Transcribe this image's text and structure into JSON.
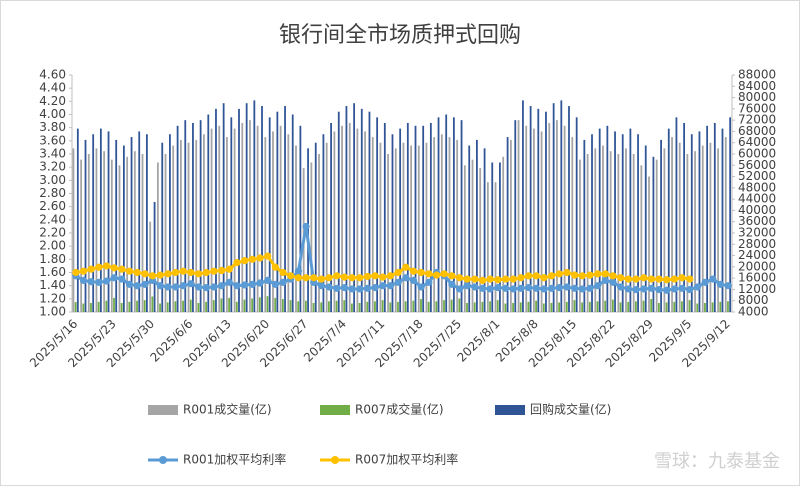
{
  "chart_data": {
    "type": "bar_line",
    "title": "银行间全市场质押式回购",
    "watermark": "雪球：九泰基金",
    "categories": [
      "2025/5/16",
      null,
      null,
      null,
      null,
      "2025/5/23",
      null,
      null,
      null,
      null,
      "2025/5/30",
      null,
      null,
      null,
      null,
      "2025/6/6",
      null,
      null,
      null,
      null,
      "2025/6/13",
      null,
      null,
      null,
      null,
      "2025/6/20",
      null,
      null,
      null,
      null,
      "2025/6/27",
      null,
      null,
      null,
      null,
      "2025/7/4",
      null,
      null,
      null,
      null,
      "2025/7/11",
      null,
      null,
      null,
      null,
      "2025/7/18",
      null,
      null,
      null,
      null,
      "2025/7/25",
      null,
      null,
      null,
      null,
      "2025/8/1",
      null,
      null,
      null,
      null,
      "2025/8/8",
      null,
      null,
      null,
      null,
      "2025/8/15",
      null,
      null,
      null,
      null,
      "2025/8/22",
      null,
      null,
      null,
      null,
      "2025/8/29",
      null,
      null,
      null,
      null,
      "2025/9/5",
      null,
      null,
      null,
      null,
      "2025/9/12"
    ],
    "ylim": [
      1.0,
      4.6
    ],
    "yticks": [
      {
        "value": 1.0,
        "label": "1.00"
      },
      {
        "value": 1.2,
        "label": "1.20"
      },
      {
        "value": 1.4,
        "label": "1.40"
      },
      {
        "value": 1.6,
        "label": "1.60"
      },
      {
        "value": 1.8,
        "label": "1.80"
      },
      {
        "value": 2.0,
        "label": "2.00"
      },
      {
        "value": 2.2,
        "label": "2.20"
      },
      {
        "value": 2.4,
        "label": "2.40"
      },
      {
        "value": 2.6,
        "label": "2.60"
      },
      {
        "value": 2.8,
        "label": "2.80"
      },
      {
        "value": 3.0,
        "label": "3.00"
      },
      {
        "value": 3.2,
        "label": "3.20"
      },
      {
        "value": 3.4,
        "label": "3.40"
      },
      {
        "value": 3.6,
        "label": "3.60"
      },
      {
        "value": 3.8,
        "label": "3.80"
      },
      {
        "value": 4.0,
        "label": "4.00"
      },
      {
        "value": 4.2,
        "label": "4.20"
      },
      {
        "value": 4.4,
        "label": "4.40"
      },
      {
        "value": 4.6,
        "label": "4.60"
      }
    ],
    "y2lim": [
      4000,
      88000
    ],
    "y2ticks": [
      4000,
      8000,
      12000,
      16000,
      20000,
      24000,
      28000,
      32000,
      36000,
      40000,
      44000,
      48000,
      52000,
      56000,
      60000,
      64000,
      68000,
      72000,
      76000,
      80000,
      84000,
      88000
    ],
    "series": [
      {
        "name": "R001成交量(亿)",
        "type": "bar",
        "axis": "y2",
        "color": "#a5a5a5",
        "values": [
          62000,
          58000,
          60000,
          62000,
          61000,
          58000,
          56000,
          59000,
          61000,
          60000,
          36000,
          57000,
          60000,
          63000,
          65000,
          64000,
          65000,
          67000,
          69000,
          70000,
          66000,
          69000,
          71000,
          72000,
          70000,
          66000,
          68000,
          70000,
          67000,
          63000,
          55000,
          57000,
          60000,
          64000,
          68000,
          70000,
          71000,
          69000,
          68000,
          66000,
          64000,
          60000,
          62000,
          64000,
          63000,
          63000,
          64000,
          66000,
          67000,
          66000,
          65000,
          56000,
          58000,
          55000,
          50000,
          50000,
          59000,
          65000,
          72000,
          70000,
          69000,
          68000,
          71000,
          72000,
          70000,
          66000,
          58000,
          60000,
          62000,
          63000,
          61000,
          60000,
          62000,
          60000,
          56000,
          52000,
          58000,
          62000,
          66000,
          64000,
          60000,
          61000,
          63000,
          64000,
          62000,
          66000
        ]
      },
      {
        "name": "R007成交量(亿)",
        "type": "bar",
        "axis": "y2",
        "color": "#70ad47",
        "values": [
          7500,
          7000,
          7200,
          7600,
          8000,
          9000,
          7200,
          7600,
          8000,
          8200,
          9500,
          7000,
          7400,
          7800,
          8000,
          8400,
          7200,
          7600,
          8200,
          8800,
          9000,
          7600,
          8400,
          8800,
          9200,
          9600,
          9000,
          8600,
          8200,
          7800,
          8000,
          7200,
          7400,
          7800,
          8000,
          8200,
          7000,
          7200,
          7600,
          7800,
          8200,
          7400,
          7600,
          7800,
          8000,
          8600,
          7600,
          7800,
          8200,
          8400,
          8800,
          7200,
          7400,
          7600,
          7800,
          8200,
          7000,
          7200,
          7400,
          7600,
          8000,
          7000,
          7200,
          7400,
          7600,
          8200,
          7400,
          7600,
          7800,
          8000,
          8400,
          7400,
          7600,
          7800,
          8000,
          8600,
          7200,
          7400,
          7600,
          7800,
          8200,
          7000,
          7200,
          7400,
          7600,
          7800
        ]
      },
      {
        "name": "回购成交量(亿)",
        "type": "bar",
        "axis": "y2",
        "color": "#2f5597",
        "values": [
          69000,
          65000,
          67000,
          69000,
          68000,
          65000,
          63000,
          66000,
          68000,
          67000,
          43000,
          64000,
          67000,
          70000,
          72000,
          71000,
          72000,
          74000,
          76000,
          78000,
          73000,
          76000,
          78000,
          79000,
          77000,
          73000,
          75000,
          77000,
          74000,
          70000,
          62000,
          64000,
          67000,
          71000,
          75000,
          77000,
          78000,
          76000,
          75000,
          73000,
          71000,
          67000,
          69000,
          71000,
          70000,
          70000,
          71000,
          73000,
          74000,
          73000,
          72000,
          63000,
          65000,
          62000,
          57000,
          57000,
          66000,
          72000,
          79000,
          77000,
          76000,
          75000,
          78000,
          79000,
          77000,
          73000,
          65000,
          67000,
          69000,
          70000,
          68000,
          67000,
          69000,
          67000,
          63000,
          59000,
          65000,
          69000,
          73000,
          71000,
          67000,
          68000,
          70000,
          71000,
          69000,
          73000
        ]
      },
      {
        "name": "R001加权平均利率",
        "type": "line",
        "color": "#5b9bd5",
        "values": [
          1.55,
          1.48,
          1.46,
          1.45,
          1.47,
          1.52,
          1.5,
          1.42,
          1.4,
          1.42,
          1.48,
          1.4,
          1.38,
          1.38,
          1.4,
          1.43,
          1.38,
          1.37,
          1.38,
          1.4,
          1.45,
          1.4,
          1.41,
          1.42,
          1.44,
          1.48,
          1.42,
          1.45,
          1.5,
          1.62,
          2.3,
          1.45,
          1.4,
          1.38,
          1.36,
          1.37,
          1.35,
          1.35,
          1.36,
          1.37,
          1.4,
          1.4,
          1.45,
          1.52,
          1.48,
          1.38,
          1.45,
          1.6,
          1.55,
          1.42,
          1.35,
          1.4,
          1.38,
          1.36,
          1.35,
          1.37,
          1.36,
          1.35,
          1.36,
          1.37,
          1.36,
          1.35,
          1.36,
          1.37,
          1.38,
          1.36,
          1.35,
          1.36,
          1.4,
          1.48,
          1.45,
          1.38,
          1.35,
          1.34,
          1.35,
          1.36,
          1.34,
          1.33,
          1.35,
          1.36,
          1.34,
          1.38,
          1.45,
          1.5,
          1.42,
          1.4
        ]
      },
      {
        "name": "R007加权平均利率",
        "type": "line",
        "color": "#ffc000",
        "values": [
          1.6,
          1.62,
          1.65,
          1.68,
          1.7,
          1.67,
          1.65,
          1.62,
          1.6,
          1.58,
          1.55,
          1.56,
          1.58,
          1.6,
          1.62,
          1.6,
          1.58,
          1.6,
          1.62,
          1.63,
          1.65,
          1.75,
          1.78,
          1.8,
          1.82,
          1.85,
          1.68,
          1.6,
          1.55,
          1.52,
          1.52,
          1.52,
          1.5,
          1.52,
          1.55,
          1.53,
          1.52,
          1.52,
          1.54,
          1.55,
          1.53,
          1.55,
          1.6,
          1.68,
          1.62,
          1.6,
          1.58,
          1.56,
          1.58,
          1.55,
          1.52,
          1.5,
          1.5,
          1.48,
          1.5,
          1.49,
          1.5,
          1.5,
          1.52,
          1.55,
          1.55,
          1.52,
          1.55,
          1.58,
          1.6,
          1.56,
          1.55,
          1.56,
          1.58,
          1.58,
          1.55,
          1.52,
          1.5,
          1.5,
          1.52,
          1.5,
          1.5,
          1.49,
          1.5,
          1.52,
          1.5,
          null,
          null,
          null,
          null,
          null
        ]
      }
    ]
  }
}
